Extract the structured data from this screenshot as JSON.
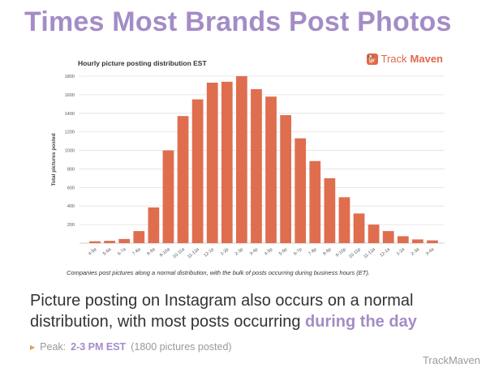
{
  "slide": {
    "title": "Times Most Brands Post Photos",
    "body_prefix": "Picture posting on Instagram also occurs on a normal distribution, with most posts occurring ",
    "body_emphasis": "during the day",
    "bullet_label": "Peak:",
    "bullet_value": "2-3 PM EST",
    "bullet_suffix": "(1800 pictures posted)",
    "footer_brand": "TrackMaven"
  },
  "brand": {
    "part1": "Track",
    "part2": "Maven",
    "icon": "trackmaven-dog-logo-icon"
  },
  "colors": {
    "title": "#a48cc6",
    "bar": "#df6e4f",
    "brand": "#e0684a",
    "grid": "#e6e6e6"
  },
  "chart_data": {
    "type": "bar",
    "title": "Hourly picture posting distribution EST",
    "caption": "Companies post pictures along a normal distribution, with the bulk of posts occurring during business hours (ET).",
    "xlabel": "",
    "ylabel": "Total pictures posted",
    "ylim": [
      0,
      1800
    ],
    "yticks": [
      200,
      400,
      600,
      800,
      1000,
      1200,
      1400,
      1600,
      1800
    ],
    "grid": true,
    "categories": [
      "4-5a",
      "5-6a",
      "6-7a",
      "7-8a",
      "8-9a",
      "9-10a",
      "10-11a",
      "11-12a",
      "12-1p",
      "1-2p",
      "2-3p",
      "3-4p",
      "4-5p",
      "5-6p",
      "6-7p",
      "7-8p",
      "8-9p",
      "9-10p",
      "10-11p",
      "11-12a",
      "12-1a",
      "1-2a",
      "2-3a",
      "3-4a"
    ],
    "values": [
      20,
      25,
      45,
      130,
      385,
      1000,
      1370,
      1550,
      1730,
      1740,
      1800,
      1660,
      1580,
      1380,
      1130,
      885,
      700,
      495,
      320,
      200,
      130,
      75,
      40,
      30
    ]
  }
}
